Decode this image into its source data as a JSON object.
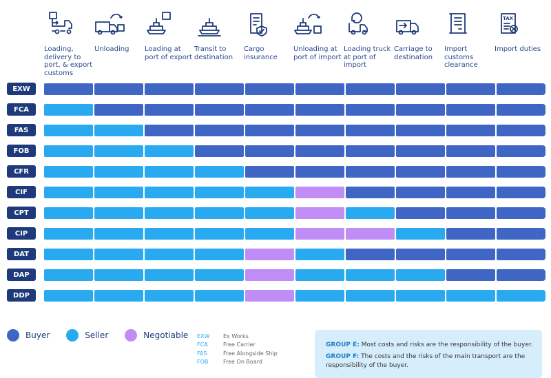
{
  "colors": {
    "buyer": "#3f66c4",
    "seller": "#29aaf0",
    "negotiable": "#c08cf5",
    "label_bg": "#1e3a7a"
  },
  "columns": [
    {
      "label": "Loading, delivery to port, & export customs",
      "icon": "truck-box-icon"
    },
    {
      "label": "Unloading",
      "icon": "truck-unload-icon"
    },
    {
      "label": "Loading at port of export",
      "icon": "ship-box-icon"
    },
    {
      "label": "Transit to destination",
      "icon": "ship-icon"
    },
    {
      "label": "Cargo insurance",
      "icon": "insurance-document-icon"
    },
    {
      "label": "Unloading at port of import",
      "icon": "ship-unload-icon"
    },
    {
      "label": "Loading truck at port of import",
      "icon": "truck-reload-icon"
    },
    {
      "label": "Carriage to destination",
      "icon": "truck-arrow-icon"
    },
    {
      "label": "Import customs clearance",
      "icon": "scroll-document-icon"
    },
    {
      "label": "Import duties",
      "icon": "tax-document-icon"
    }
  ],
  "rows": [
    {
      "term": "EXW",
      "cells": [
        "B",
        "B",
        "B",
        "B",
        "B",
        "B",
        "B",
        "B",
        "B",
        "B"
      ]
    },
    {
      "term": "FCA",
      "cells": [
        "S",
        "B",
        "B",
        "B",
        "B",
        "B",
        "B",
        "B",
        "B",
        "B"
      ]
    },
    {
      "term": "FAS",
      "cells": [
        "S",
        "S",
        "B",
        "B",
        "B",
        "B",
        "B",
        "B",
        "B",
        "B"
      ]
    },
    {
      "term": "FOB",
      "cells": [
        "S",
        "S",
        "S",
        "B",
        "B",
        "B",
        "B",
        "B",
        "B",
        "B"
      ]
    },
    {
      "term": "CFR",
      "cells": [
        "S",
        "S",
        "S",
        "S",
        "B",
        "B",
        "B",
        "B",
        "B",
        "B"
      ]
    },
    {
      "term": "CIF",
      "cells": [
        "S",
        "S",
        "S",
        "S",
        "S",
        "N",
        "B",
        "B",
        "B",
        "B"
      ]
    },
    {
      "term": "CPT",
      "cells": [
        "S",
        "S",
        "S",
        "S",
        "S",
        "N",
        "S",
        "B",
        "B",
        "B"
      ]
    },
    {
      "term": "CIP",
      "cells": [
        "S",
        "S",
        "S",
        "S",
        "S",
        "N",
        "N",
        "S",
        "B",
        "B"
      ]
    },
    {
      "term": "DAT",
      "cells": [
        "S",
        "S",
        "S",
        "S",
        "N",
        "S",
        "B",
        "B",
        "B",
        "B"
      ]
    },
    {
      "term": "DAP",
      "cells": [
        "S",
        "S",
        "S",
        "S",
        "N",
        "S",
        "S",
        "S",
        "B",
        "B"
      ]
    },
    {
      "term": "DDP",
      "cells": [
        "S",
        "S",
        "S",
        "S",
        "N",
        "S",
        "S",
        "S",
        "S",
        "S"
      ]
    }
  ],
  "legend": [
    {
      "label": "Buyer",
      "key": "B"
    },
    {
      "label": "Seller",
      "key": "S"
    },
    {
      "label": "Negotiable",
      "key": "N"
    }
  ],
  "abbreviations": [
    {
      "code": "EXW",
      "name": "Ex Works"
    },
    {
      "code": "FCA",
      "name": "Free Carrier"
    },
    {
      "code": "FAS",
      "name": "Free Alongside Ship"
    },
    {
      "code": "FOB",
      "name": "Free On Board"
    }
  ],
  "groups": [
    {
      "name": "GROUP E:",
      "text": "Most costs and risks are the responsibility of the buyer."
    },
    {
      "name": "GROUP F:",
      "text": "The costs and the risks of the main transport are the responsibility of the buyer."
    }
  ]
}
